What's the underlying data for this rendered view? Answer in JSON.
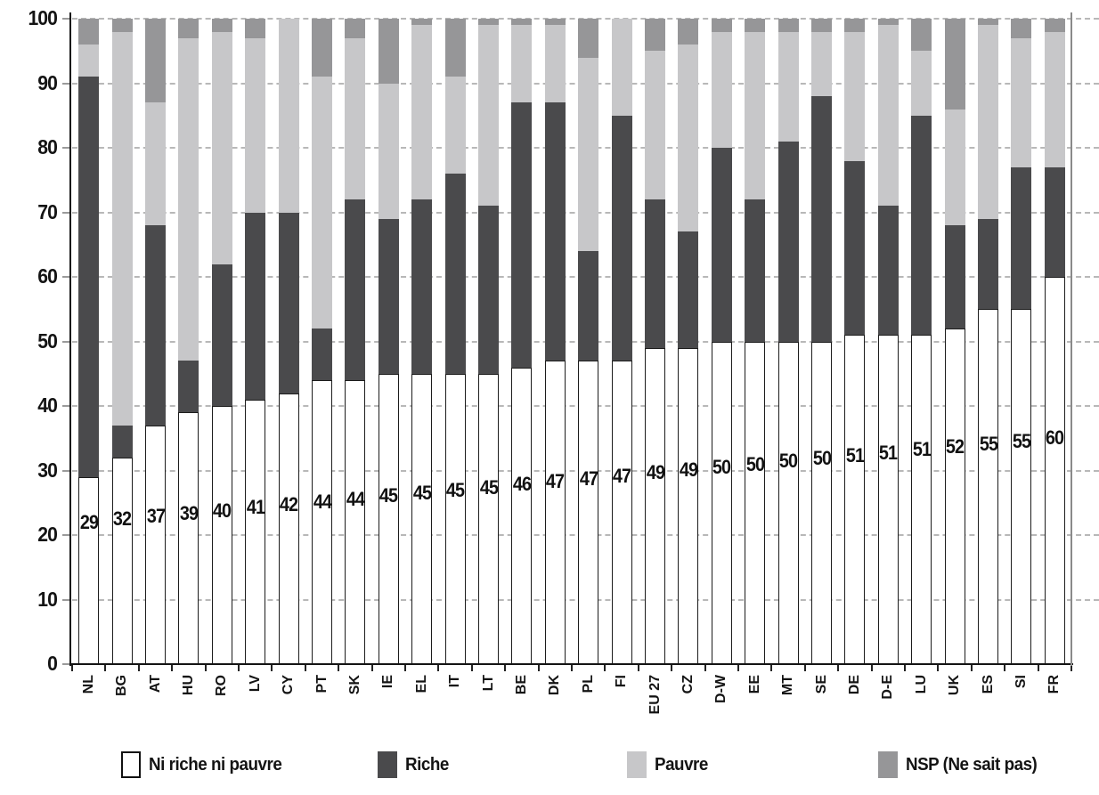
{
  "chart_data": {
    "type": "bar",
    "stacked": true,
    "title": "",
    "categories": [
      "NL",
      "BG",
      "AT",
      "HU",
      "RO",
      "LV",
      "CY",
      "PT",
      "SK",
      "IE",
      "EL",
      "IT",
      "LT",
      "BE",
      "DK",
      "PL",
      "FI",
      "EU 27",
      "CZ",
      "D-W",
      "EE",
      "MT",
      "SE",
      "DE",
      "D-E",
      "LU",
      "UK",
      "ES",
      "SI",
      "FR"
    ],
    "series": [
      {
        "name": "Ni riche ni pauvre",
        "color": "#ffffff",
        "values": [
          29,
          32,
          37,
          39,
          40,
          41,
          42,
          44,
          44,
          45,
          45,
          45,
          45,
          46,
          47,
          47,
          47,
          49,
          49,
          50,
          50,
          50,
          50,
          51,
          51,
          51,
          52,
          55,
          55,
          60
        ]
      },
      {
        "name": "Riche",
        "color": "#4a4a4c",
        "values": [
          62,
          5,
          31,
          8,
          22,
          29,
          28,
          8,
          28,
          24,
          27,
          31,
          26,
          41,
          40,
          17,
          38,
          23,
          18,
          30,
          22,
          31,
          38,
          27,
          20,
          34,
          16,
          14,
          22,
          17
        ]
      },
      {
        "name": "Pauvre",
        "color": "#c7c7c9",
        "values": [
          5,
          61,
          19,
          50,
          36,
          27,
          30,
          39,
          25,
          21,
          27,
          15,
          28,
          12,
          12,
          30,
          15,
          23,
          29,
          18,
          26,
          17,
          10,
          20,
          28,
          10,
          18,
          30,
          20,
          21
        ]
      },
      {
        "name": "NSP (Ne sait pas)",
        "color": "#969698",
        "values": [
          4,
          2,
          13,
          3,
          2,
          3,
          0,
          9,
          3,
          10,
          1,
          9,
          1,
          1,
          1,
          6,
          0,
          5,
          4,
          2,
          2,
          2,
          2,
          2,
          1,
          5,
          14,
          1,
          3,
          2
        ]
      }
    ],
    "bar_value_labels": [
      "29",
      "32",
      "37",
      "39",
      "40",
      "41",
      "42",
      "44",
      "44",
      "45",
      "45",
      "45",
      "45",
      "46",
      "47",
      "47",
      "47",
      "49",
      "49",
      "50",
      "50",
      "50",
      "50",
      "51",
      "51",
      "51",
      "52",
      "55",
      "55",
      "60"
    ],
    "xlabel": "",
    "ylabel": "",
    "ylim": [
      0,
      100
    ],
    "yticks": [
      0,
      10,
      20,
      30,
      40,
      50,
      60,
      70,
      80,
      90,
      100
    ],
    "grid": "horizontal-dashed",
    "legend_position": "bottom"
  },
  "colors": {
    "axis": "#141414",
    "right_border": "#8a8a8a",
    "gridline": "#b8b8b8",
    "bar_outline": "#1c1c1c",
    "text": "#141414"
  }
}
